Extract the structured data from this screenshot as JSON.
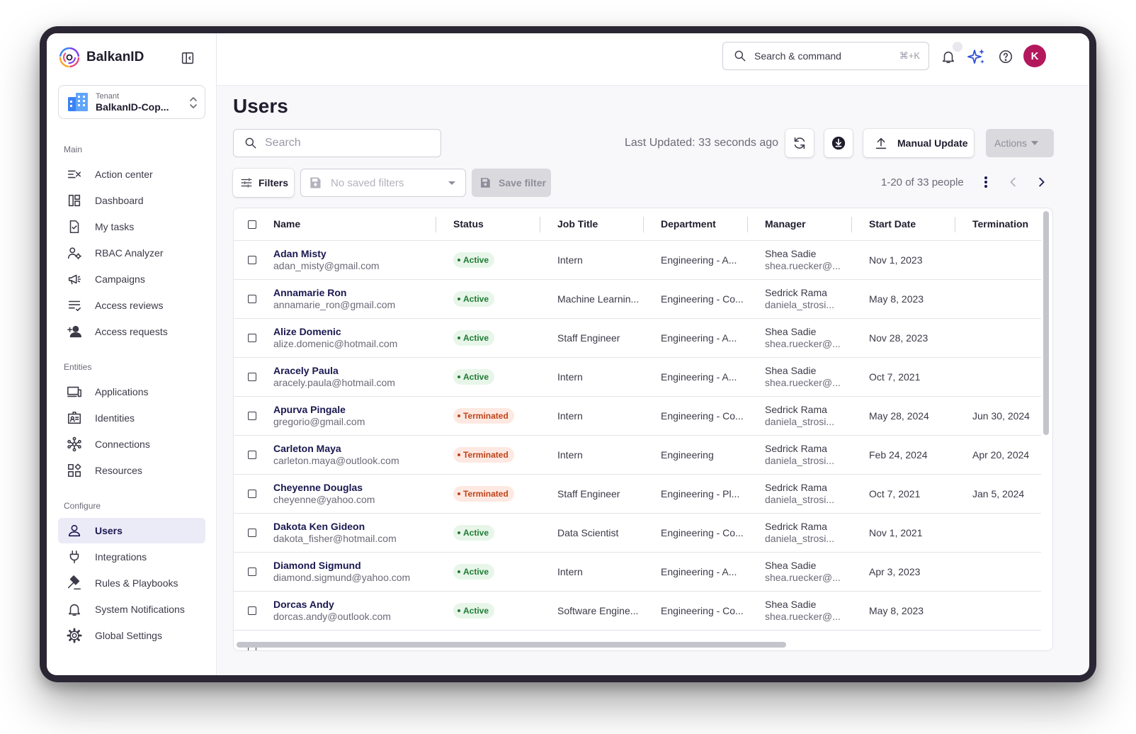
{
  "brand": {
    "name": "BalkanID"
  },
  "tenant": {
    "label": "Tenant",
    "value": "BalkanID-Cop..."
  },
  "sidebar": {
    "sections": [
      {
        "title": "Main"
      },
      {
        "title": "Entities"
      },
      {
        "title": "Configure"
      }
    ],
    "main_items": [
      {
        "label": "Action center",
        "icon": "action-center-icon"
      },
      {
        "label": "Dashboard",
        "icon": "dashboard-icon"
      },
      {
        "label": "My tasks",
        "icon": "tasks-icon"
      },
      {
        "label": "RBAC Analyzer",
        "icon": "rbac-icon"
      },
      {
        "label": "Campaigns",
        "icon": "megaphone-icon"
      },
      {
        "label": "Access reviews",
        "icon": "reviews-icon"
      },
      {
        "label": "Access requests",
        "icon": "add-user-icon"
      }
    ],
    "entity_items": [
      {
        "label": "Applications",
        "icon": "devices-icon"
      },
      {
        "label": "Identities",
        "icon": "id-card-icon"
      },
      {
        "label": "Connections",
        "icon": "hub-icon"
      },
      {
        "label": "Resources",
        "icon": "widgets-icon"
      }
    ],
    "configure_items": [
      {
        "label": "Users",
        "icon": "user-icon",
        "active": true
      },
      {
        "label": "Integrations",
        "icon": "plug-icon"
      },
      {
        "label": "Rules & Playbooks",
        "icon": "gavel-icon"
      },
      {
        "label": "System Notifications",
        "icon": "bell-icon"
      },
      {
        "label": "Global Settings",
        "icon": "gear-icon"
      }
    ]
  },
  "topbar": {
    "search_label": "Search & command",
    "shortcut": "⌘+K",
    "avatar_initial": "K"
  },
  "page": {
    "title": "Users",
    "search_placeholder": "Search",
    "last_updated": "Last Updated: 33 seconds ago",
    "manual_update": "Manual Update",
    "actions": "Actions",
    "filters": "Filters",
    "saved_filters_placeholder": "No saved filters",
    "save_filter": "Save filter",
    "pagination": "1-20 of 33 people"
  },
  "table": {
    "columns": [
      "Name",
      "Status",
      "Job Title",
      "Department",
      "Manager",
      "Start Date",
      "Termination"
    ],
    "rows": [
      {
        "name": "Adan Misty",
        "email": "adan_misty@gmail.com",
        "status": "Active",
        "job": "Intern",
        "dept": "Engineering - A...",
        "manager": "Shea Sadie",
        "manager_email": "shea.ruecker@...",
        "start": "Nov 1, 2023",
        "term": ""
      },
      {
        "name": "Annamarie Ron",
        "email": "annamarie_ron@gmail.com",
        "status": "Active",
        "job": "Machine Learnin...",
        "dept": "Engineering - Co...",
        "manager": "Sedrick Rama",
        "manager_email": "daniela_strosi...",
        "start": "May 8, 2023",
        "term": ""
      },
      {
        "name": "Alize Domenic",
        "email": "alize.domenic@hotmail.com",
        "status": "Active",
        "job": "Staff Engineer",
        "dept": "Engineering - A...",
        "manager": "Shea Sadie",
        "manager_email": "shea.ruecker@...",
        "start": "Nov 28, 2023",
        "term": ""
      },
      {
        "name": "Aracely Paula",
        "email": "aracely.paula@hotmail.com",
        "status": "Active",
        "job": "Intern",
        "dept": "Engineering - A...",
        "manager": "Shea Sadie",
        "manager_email": "shea.ruecker@...",
        "start": "Oct 7, 2021",
        "term": ""
      },
      {
        "name": "Apurva Pingale",
        "email": "gregorio@gmail.com",
        "status": "Terminated",
        "job": "Intern",
        "dept": "Engineering - Co...",
        "manager": "Sedrick Rama",
        "manager_email": "daniela_strosi...",
        "start": "May 28, 2024",
        "term": "Jun 30, 2024"
      },
      {
        "name": "Carleton Maya",
        "email": "carleton.maya@outlook.com",
        "status": "Terminated",
        "job": "Intern",
        "dept": "Engineering",
        "manager": "Sedrick Rama",
        "manager_email": "daniela_strosi...",
        "start": "Feb 24, 2024",
        "term": "Apr 20, 2024"
      },
      {
        "name": "Cheyenne Douglas",
        "email": "cheyenne@yahoo.com",
        "status": "Terminated",
        "job": "Staff Engineer",
        "dept": "Engineering - Pl...",
        "manager": "Sedrick Rama",
        "manager_email": "daniela_strosi...",
        "start": "Oct 7, 2021",
        "term": "Jan 5, 2024"
      },
      {
        "name": "Dakota Ken Gideon",
        "email": "dakota_fisher@hotmail.com",
        "status": "Active",
        "job": "Data Scientist",
        "dept": "Engineering - Co...",
        "manager": "Sedrick Rama",
        "manager_email": "daniela_strosi...",
        "start": "Nov 1, 2021",
        "term": ""
      },
      {
        "name": "Diamond Sigmund",
        "email": "diamond.sigmund@yahoo.com",
        "status": "Active",
        "job": "Intern",
        "dept": "Engineering - A...",
        "manager": "Shea Sadie",
        "manager_email": "shea.ruecker@...",
        "start": "Apr 3, 2023",
        "term": ""
      },
      {
        "name": "Dorcas Andy",
        "email": "dorcas.andy@outlook.com",
        "status": "Active",
        "job": "Software Engine...",
        "dept": "Engineering - Co...",
        "manager": "Shea Sadie",
        "manager_email": "shea.ruecker@...",
        "start": "May 8, 2023",
        "term": ""
      }
    ]
  }
}
